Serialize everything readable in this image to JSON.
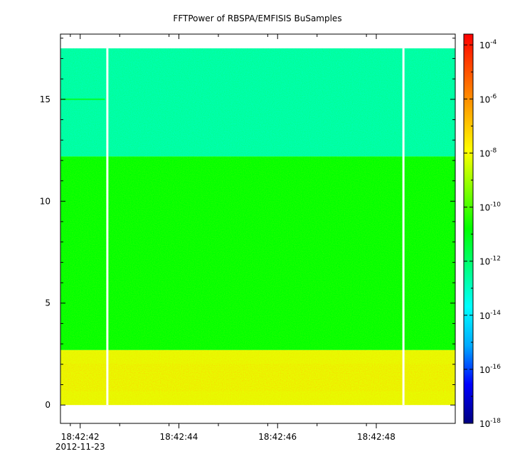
{
  "chart_data": {
    "type": "heatmap",
    "title": "FFTPower of RBSPA/EMFISIS  BuSamples",
    "xlabel": "",
    "ylabel": "",
    "x_ticks": [
      {
        "t": 42,
        "label": "18:42:42"
      },
      {
        "t": 44,
        "label": "18:42:44"
      },
      {
        "t": 46,
        "label": "18:42:46"
      },
      {
        "t": 48,
        "label": "18:42:48"
      }
    ],
    "x_minor_ticks": [
      41.8,
      42.8,
      43.8,
      44.8,
      45.8,
      46.8,
      47.8
    ],
    "x_date_label": "2012-11-23",
    "xlim_seconds": [
      41.6,
      49.6
    ],
    "ylim": [
      -0.9,
      18.2
    ],
    "y_ticks": [
      0,
      5,
      10,
      15
    ],
    "data_extent": {
      "t_start": 41.6,
      "t_end": 49.6,
      "f_min": 0,
      "f_max": 17.5
    },
    "gaps_seconds": [
      42.55,
      48.55
    ],
    "bands": [
      {
        "f_from": 0,
        "f_to": 2.7,
        "log10_power": -8.2,
        "description": "yellow-orange"
      },
      {
        "f_from": 2.7,
        "f_to": 12.2,
        "log10_power": -10.8,
        "description": "green"
      },
      {
        "f_from": 12.2,
        "f_to": 17.5,
        "log10_power": -12.8,
        "description": "bright green"
      }
    ],
    "line_feature": {
      "f": 15.0,
      "t_from": 41.6,
      "t_to": 42.5
    },
    "colorbar": {
      "scale": "log",
      "range_log10": [
        -18,
        -3.6
      ],
      "ticks": [
        {
          "base": "10",
          "exp": "-4",
          "value": -4
        },
        {
          "base": "10",
          "exp": "-6",
          "value": -6
        },
        {
          "base": "10",
          "exp": "-8",
          "value": -8
        },
        {
          "base": "10",
          "exp": "-10",
          "value": -10
        },
        {
          "base": "10",
          "exp": "-12",
          "value": -12
        },
        {
          "base": "10",
          "exp": "-14",
          "value": -14
        },
        {
          "base": "10",
          "exp": "-16",
          "value": -16
        },
        {
          "base": "10",
          "exp": "-18",
          "value": -18
        }
      ],
      "colormap": [
        "#00007f",
        "#0000ff",
        "#00aaff",
        "#00ffff",
        "#00ff80",
        "#00ff00",
        "#80ff00",
        "#ffff00",
        "#ffaa00",
        "#ff5500",
        "#ff0000"
      ]
    },
    "grid": false,
    "legend": "none"
  }
}
